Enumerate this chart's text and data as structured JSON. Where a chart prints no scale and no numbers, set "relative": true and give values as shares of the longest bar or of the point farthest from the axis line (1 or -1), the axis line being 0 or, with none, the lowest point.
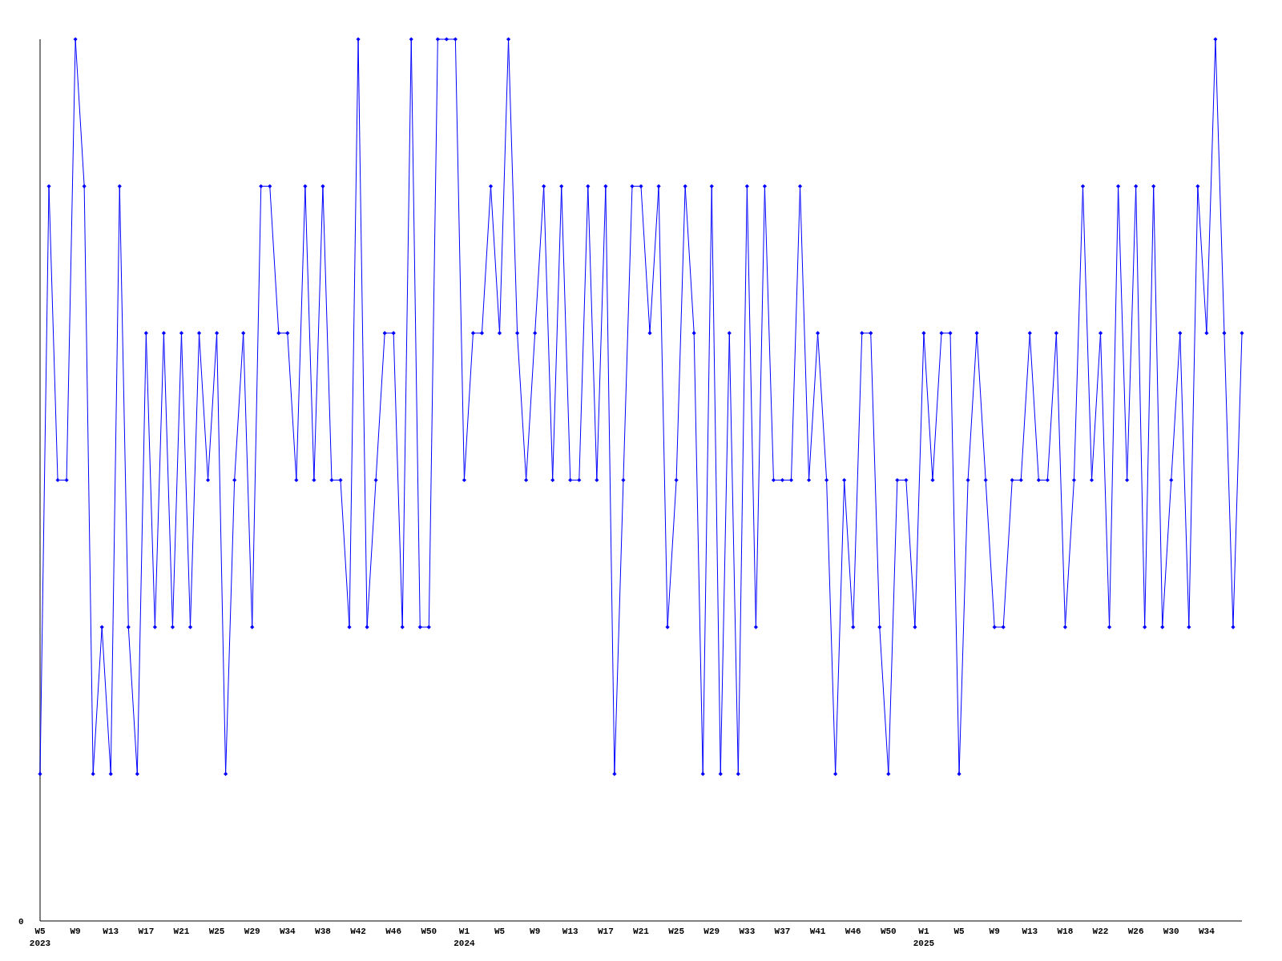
{
  "chart_data": {
    "type": "line",
    "relative": true,
    "marker": "diamond",
    "line_style": "solid",
    "annotations": [
      "0"
    ],
    "categories": [
      "W5\n2023",
      null,
      null,
      null,
      "W9",
      null,
      null,
      null,
      "W13",
      null,
      null,
      null,
      "W17",
      null,
      null,
      null,
      "W21",
      null,
      null,
      null,
      "W25",
      null,
      null,
      null,
      "W29",
      null,
      null,
      null,
      "W34",
      null,
      null,
      null,
      "W38",
      null,
      null,
      null,
      "W42",
      null,
      null,
      null,
      "W46",
      null,
      null,
      null,
      "W50",
      null,
      null,
      null,
      "W1\n2024",
      null,
      null,
      null,
      "W5",
      null,
      null,
      null,
      "W9",
      null,
      null,
      null,
      "W13",
      null,
      null,
      null,
      "W17",
      null,
      null,
      null,
      "W21",
      null,
      null,
      null,
      "W25",
      null,
      null,
      null,
      "W29",
      null,
      null,
      null,
      "W33",
      null,
      null,
      null,
      "W37",
      null,
      null,
      null,
      "W41",
      null,
      null,
      null,
      "W46",
      null,
      null,
      null,
      "W50",
      null,
      null,
      null,
      "W1\n2025",
      null,
      null,
      null,
      "W5",
      null,
      null,
      null,
      "W9",
      null,
      null,
      null,
      "W13",
      null,
      null,
      null,
      "W18",
      null,
      null,
      null,
      "W22",
      null,
      null,
      null,
      "W26",
      null,
      null,
      null,
      "W30",
      null,
      null,
      null,
      "W34",
      null,
      null,
      null,
      null
    ],
    "series": [
      {
        "color": "#0000ff",
        "values": [
          0.1667,
          0.8333,
          0.5,
          0.5,
          1,
          0.8333,
          0.1667,
          0.3333,
          0.1667,
          0.8333,
          0.3333,
          0.1667,
          0.6667,
          0.3333,
          0.6667,
          0.3333,
          0.6667,
          0.3333,
          0.6667,
          0.5,
          0.6667,
          0.1667,
          0.5,
          0.6667,
          0.3333,
          0.8333,
          0.8333,
          0.6667,
          0.6667,
          0.5,
          0.8333,
          0.5,
          0.8333,
          0.5,
          0.5,
          0.3333,
          1,
          0.3333,
          0.5,
          0.6667,
          0.6667,
          0.3333,
          1,
          0.3333,
          0.3333,
          1,
          1,
          1,
          0.5,
          0.6667,
          0.6667,
          0.8333,
          0.6667,
          1,
          0.6667,
          0.5,
          0.6667,
          0.8333,
          0.5,
          0.8333,
          0.5,
          0.5,
          0.8333,
          0.5,
          0.8333,
          0.1667,
          0.5,
          0.8333,
          0.8333,
          0.6667,
          0.8333,
          0.3333,
          0.5,
          0.8333,
          0.6667,
          0.1667,
          0.8333,
          0.1667,
          0.6667,
          0.1667,
          0.8333,
          0.3333,
          0.8333,
          0.5,
          0.5,
          0.5,
          0.8333,
          0.5,
          0.6667,
          0.5,
          0.1667,
          0.5,
          0.3333,
          0.6667,
          0.6667,
          0.3333,
          0.1667,
          0.5,
          0.5,
          0.3333,
          0.6667,
          0.5,
          0.6667,
          0.6667,
          0.1667,
          0.5,
          0.6667,
          0.5,
          0.3333,
          0.3333,
          0.5,
          0.5,
          0.6667,
          0.5,
          0.5,
          0.6667,
          0.3333,
          0.5,
          0.8333,
          0.5,
          0.6667,
          0.3333,
          0.8333,
          0.5,
          0.8333,
          0.3333,
          0.8333,
          0.3333,
          0.5,
          0.6667,
          0.3333,
          0.8333,
          0.6667,
          1,
          0.6667,
          0.3333,
          0.6667
        ]
      }
    ]
  }
}
